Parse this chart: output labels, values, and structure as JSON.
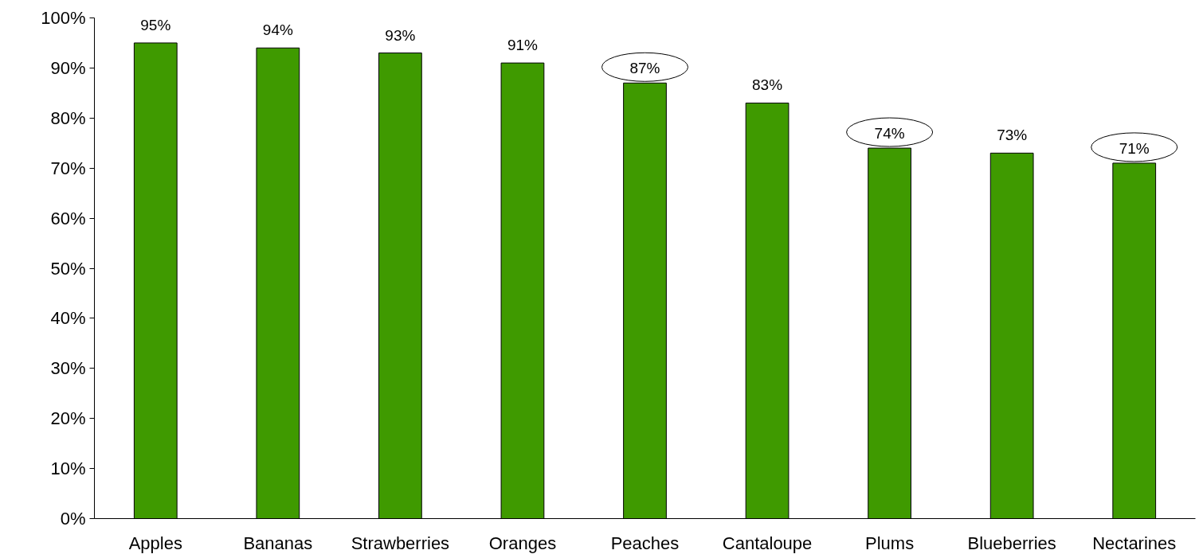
{
  "chart_data": {
    "type": "bar",
    "categories": [
      "Apples",
      "Bananas",
      "Strawberries",
      "Oranges",
      "Peaches",
      "Cantaloupe",
      "Plums",
      "Blueberries",
      "Nectarines"
    ],
    "values": [
      95,
      94,
      93,
      91,
      87,
      83,
      74,
      73,
      71
    ],
    "color": "#3f9a00",
    "ylim": [
      0,
      100
    ],
    "yticks": [
      {
        "value": 0,
        "label": "0%"
      },
      {
        "value": 10,
        "label": "10%"
      },
      {
        "value": 20,
        "label": "20%"
      },
      {
        "value": 30,
        "label": "30%"
      },
      {
        "value": 40,
        "label": "40%"
      },
      {
        "value": 50,
        "label": "50%"
      },
      {
        "value": 60,
        "label": "60%"
      },
      {
        "value": 70,
        "label": "70%"
      },
      {
        "value": 80,
        "label": "80%"
      },
      {
        "value": 90,
        "label": "90%"
      },
      {
        "value": 100,
        "label": "100%"
      }
    ],
    "value_labels": [
      "95%",
      "94%",
      "93%",
      "91%",
      null,
      "83%",
      null,
      "73%",
      null
    ],
    "annotations": [
      {
        "text": "87%",
        "x": "Peaches",
        "y": 87
      },
      {
        "text": "74%",
        "x": "Plums",
        "y": 74
      },
      {
        "text": "71%",
        "x": "Nectarines",
        "y": 71
      }
    ],
    "grid": false
  }
}
